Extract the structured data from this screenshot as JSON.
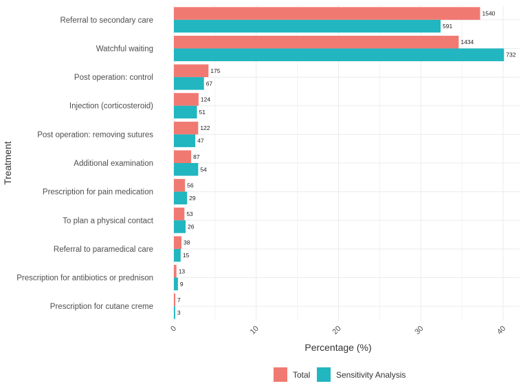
{
  "chart_data": {
    "type": "bar",
    "orientation": "horizontal",
    "categories": [
      "Referral to secondary care",
      "Watchful waiting",
      "Post operation: control",
      "Injection (corticosteroid)",
      "Post operation: removing sutures",
      "Additional examination",
      "Prescription for pain medication",
      "To plan a physical contact",
      "Referral to paramedical care",
      "Prescription for antibiotics or prednison",
      "Prescription for cutane creme"
    ],
    "series": [
      {
        "name": "Total",
        "color": "#F07A72",
        "values": [
          37.2,
          34.6,
          4.2,
          3.0,
          2.95,
          2.1,
          1.35,
          1.28,
          0.92,
          0.31,
          0.17
        ],
        "labels": [
          "1540",
          "1434",
          "175",
          "124",
          "122",
          "87",
          "56",
          "53",
          "38",
          "13",
          "7"
        ]
      },
      {
        "name": "Sensitivity Analysis",
        "color": "#21B6C0",
        "values": [
          32.4,
          40.1,
          3.65,
          2.8,
          2.6,
          2.95,
          1.6,
          1.42,
          0.82,
          0.49,
          0.16
        ],
        "labels": [
          "591",
          "732",
          "67",
          "51",
          "47",
          "54",
          "29",
          "26",
          "15",
          "9",
          "3"
        ]
      }
    ],
    "x_ticks": [
      "0",
      "10",
      "20",
      "30",
      "40"
    ],
    "x_tick_values": [
      0,
      10,
      20,
      30,
      40
    ],
    "xlim": [
      0,
      42
    ],
    "xlabel": "Percentage (%)",
    "ylabel": "Treatment",
    "grid": true,
    "legend_position": "bottom"
  }
}
